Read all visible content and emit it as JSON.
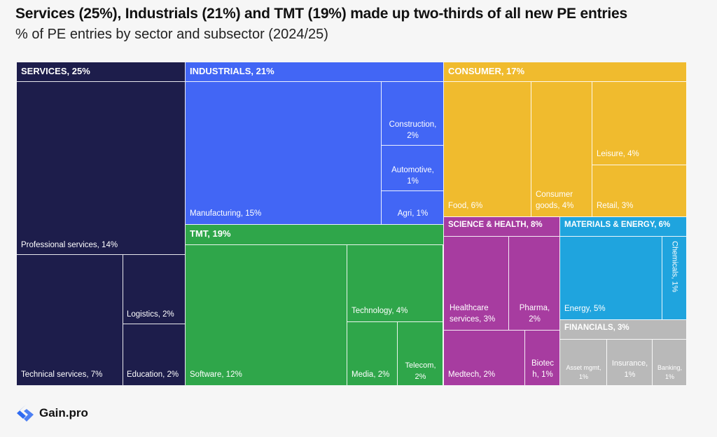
{
  "title": "Services (25%), Industrials (21%) and TMT (19%) made up two-thirds of all new PE entries",
  "subtitle": "% of PE entries by sector and subsector (2024/25)",
  "logo_text": "Gain.pro",
  "colors": {
    "services": "#1d1d4b",
    "industrials": "#4266f5",
    "tmt": "#2fa64a",
    "consumer": "#f0bb2e",
    "science_health": "#a73ca0",
    "materials_energy": "#1fa4de",
    "financials": "#b9b9b9",
    "logo_blue": "#2f6bf2"
  },
  "chart_data": {
    "type": "treemap",
    "title": "Services (25%), Industrials (21%) and TMT (19%) made up two-thirds of all new PE entries",
    "subtitle": "% of PE entries by sector and subsector (2024/25)",
    "unit": "%",
    "sectors": [
      {
        "id": "services",
        "label": "SERVICES, 25%",
        "value": 25,
        "subsectors": [
          {
            "id": "professional",
            "label": "Professional services, 14%",
            "value": 14
          },
          {
            "id": "technical",
            "label": "Technical services, 7%",
            "value": 7
          },
          {
            "id": "logistics",
            "label": "Logistics, 2%",
            "value": 2
          },
          {
            "id": "education",
            "label": "Education, 2%",
            "value": 2
          }
        ]
      },
      {
        "id": "industrials",
        "label": "INDUSTRIALS, 21%",
        "value": 21,
        "subsectors": [
          {
            "id": "manufacturing",
            "label": "Manufacturing, 15%",
            "value": 15
          },
          {
            "id": "construction",
            "label": "Construction, 2%",
            "value": 2
          },
          {
            "id": "automotive",
            "label": "Automotive, 1%",
            "value": 1
          },
          {
            "id": "agri",
            "label": "Agri, 1%",
            "value": 1
          }
        ]
      },
      {
        "id": "tmt",
        "label": "TMT, 19%",
        "value": 19,
        "subsectors": [
          {
            "id": "software",
            "label": "Software, 12%",
            "value": 12
          },
          {
            "id": "technology",
            "label": "Technology, 4%",
            "value": 4
          },
          {
            "id": "media",
            "label": "Media, 2%",
            "value": 2
          },
          {
            "id": "telecom",
            "label": "Telecom, 2%",
            "value": 2
          }
        ]
      },
      {
        "id": "consumer",
        "label": "CONSUMER, 17%",
        "value": 17,
        "subsectors": [
          {
            "id": "food",
            "label": "Food, 6%",
            "value": 6
          },
          {
            "id": "consumer_goods",
            "label": "Consumer goods, 4%",
            "value": 4
          },
          {
            "id": "leisure",
            "label": "Leisure, 4%",
            "value": 4
          },
          {
            "id": "retail",
            "label": "Retail, 3%",
            "value": 3
          }
        ]
      },
      {
        "id": "science_health",
        "label": "SCIENCE & HEALTH, 8%",
        "value": 8,
        "subsectors": [
          {
            "id": "healthcare_services",
            "label": "Healthcare services, 3%",
            "value": 3
          },
          {
            "id": "pharma",
            "label": "Pharma, 2%",
            "value": 2
          },
          {
            "id": "medtech",
            "label": "Medtech, 2%",
            "value": 2
          },
          {
            "id": "biotech",
            "label": "Biotech, 1%",
            "value": 1
          }
        ]
      },
      {
        "id": "materials_energy",
        "label": "MATERIALS & ENERGY, 6%",
        "value": 6,
        "subsectors": [
          {
            "id": "energy",
            "label": "Energy, 5%",
            "value": 5
          },
          {
            "id": "chemicals",
            "label": "Chemicals, 1%",
            "value": 1
          }
        ]
      },
      {
        "id": "financials",
        "label": "FINANCIALS, 3%",
        "value": 3,
        "subsectors": [
          {
            "id": "asset_mgmt",
            "label": "Asset mgmt, 1%",
            "value": 1
          },
          {
            "id": "insurance",
            "label": "Insurance, 1%",
            "value": 1
          },
          {
            "id": "banking",
            "label": "Banking, 1%",
            "value": 1
          }
        ]
      }
    ]
  }
}
